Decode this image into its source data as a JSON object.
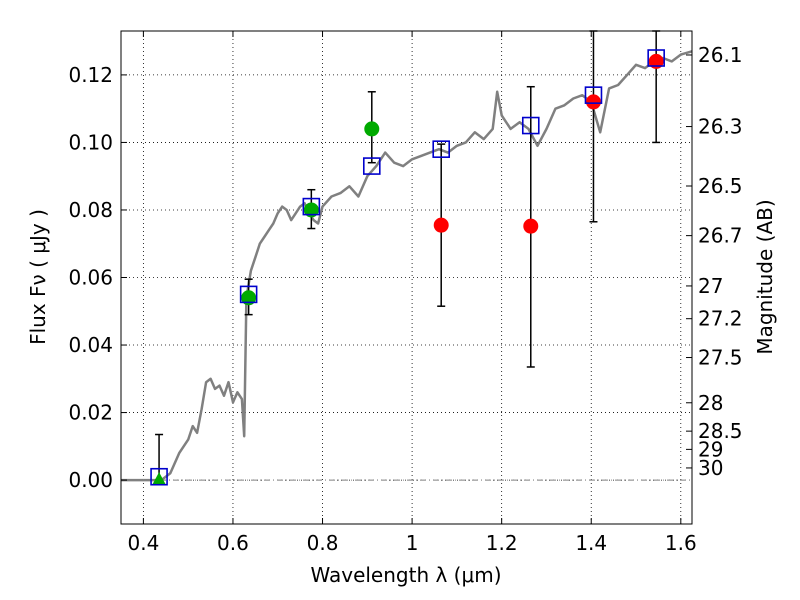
{
  "chart_data": {
    "type": "scatter",
    "xlabel": "Wavelength  λ (μm)",
    "ylabel": "Flux  Fν  ( μJy )",
    "ylabel_right": "Magnitude (AB)",
    "xlim": [
      0.35,
      1.625
    ],
    "ylim": [
      -0.013,
      0.133
    ],
    "grid": true,
    "x_ticks": [
      0.4,
      0.6,
      0.8,
      1.0,
      1.2,
      1.4,
      1.6
    ],
    "x_tick_labels": [
      "0.4",
      "0.6",
      "0.8",
      "1",
      "1.2",
      "1.4",
      "1.6"
    ],
    "y_ticks": [
      0.0,
      0.02,
      0.04,
      0.06,
      0.08,
      0.1,
      0.12
    ],
    "y_tick_labels": [
      "0.00",
      "0.02",
      "0.04",
      "0.06",
      "0.08",
      "0.10",
      "0.12"
    ],
    "right_ticks": [
      {
        "flux": 0.1259,
        "label": "26.1"
      },
      {
        "flux": 0.1047,
        "label": "26.3"
      },
      {
        "flux": 0.0871,
        "label": "26.5"
      },
      {
        "flux": 0.0724,
        "label": "26.7"
      },
      {
        "flux": 0.0575,
        "label": "27"
      },
      {
        "flux": 0.0478,
        "label": "27.2"
      },
      {
        "flux": 0.0363,
        "label": "27.5"
      },
      {
        "flux": 0.0229,
        "label": "28"
      },
      {
        "flux": 0.0145,
        "label": "28.5"
      },
      {
        "flux": 0.0091,
        "label": "29"
      },
      {
        "flux": 0.0036,
        "label": "30"
      }
    ],
    "model_sed": {
      "color": "#808080",
      "points": [
        [
          0.35,
          0.0
        ],
        [
          0.44,
          0.0
        ],
        [
          0.46,
          0.002
        ],
        [
          0.48,
          0.008
        ],
        [
          0.5,
          0.012
        ],
        [
          0.51,
          0.016
        ],
        [
          0.52,
          0.014
        ],
        [
          0.53,
          0.021
        ],
        [
          0.54,
          0.029
        ],
        [
          0.55,
          0.03
        ],
        [
          0.56,
          0.027
        ],
        [
          0.57,
          0.028
        ],
        [
          0.58,
          0.025
        ],
        [
          0.59,
          0.029
        ],
        [
          0.6,
          0.023
        ],
        [
          0.61,
          0.026
        ],
        [
          0.62,
          0.024
        ],
        [
          0.625,
          0.013
        ],
        [
          0.63,
          0.054
        ],
        [
          0.64,
          0.062
        ],
        [
          0.65,
          0.066
        ],
        [
          0.66,
          0.07
        ],
        [
          0.67,
          0.072
        ],
        [
          0.68,
          0.074
        ],
        [
          0.69,
          0.076
        ],
        [
          0.7,
          0.079
        ],
        [
          0.71,
          0.081
        ],
        [
          0.72,
          0.08
        ],
        [
          0.73,
          0.077
        ],
        [
          0.74,
          0.079
        ],
        [
          0.75,
          0.081
        ],
        [
          0.76,
          0.082
        ],
        [
          0.77,
          0.079
        ],
        [
          0.78,
          0.077
        ],
        [
          0.79,
          0.076
        ],
        [
          0.8,
          0.081
        ],
        [
          0.82,
          0.084
        ],
        [
          0.84,
          0.085
        ],
        [
          0.86,
          0.087
        ],
        [
          0.88,
          0.084
        ],
        [
          0.9,
          0.09
        ],
        [
          0.92,
          0.093
        ],
        [
          0.94,
          0.097
        ],
        [
          0.96,
          0.094
        ],
        [
          0.98,
          0.093
        ],
        [
          1.0,
          0.095
        ],
        [
          1.02,
          0.096
        ],
        [
          1.04,
          0.097
        ],
        [
          1.06,
          0.098
        ],
        [
          1.08,
          0.097
        ],
        [
          1.1,
          0.099
        ],
        [
          1.12,
          0.1
        ],
        [
          1.14,
          0.103
        ],
        [
          1.16,
          0.101
        ],
        [
          1.18,
          0.104
        ],
        [
          1.19,
          0.115
        ],
        [
          1.2,
          0.108
        ],
        [
          1.22,
          0.104
        ],
        [
          1.24,
          0.106
        ],
        [
          1.26,
          0.104
        ],
        [
          1.28,
          0.099
        ],
        [
          1.3,
          0.104
        ],
        [
          1.32,
          0.11
        ],
        [
          1.34,
          0.111
        ],
        [
          1.36,
          0.113
        ],
        [
          1.38,
          0.114
        ],
        [
          1.4,
          0.112
        ],
        [
          1.42,
          0.103
        ],
        [
          1.44,
          0.116
        ],
        [
          1.46,
          0.117
        ],
        [
          1.48,
          0.12
        ],
        [
          1.5,
          0.123
        ],
        [
          1.52,
          0.122
        ],
        [
          1.54,
          0.124
        ],
        [
          1.56,
          0.125
        ],
        [
          1.58,
          0.124
        ],
        [
          1.6,
          0.126
        ],
        [
          1.625,
          0.127
        ]
      ]
    },
    "series": [
      {
        "marker": "square",
        "color": "#0000cc",
        "points": [
          {
            "x": 0.435,
            "y": 0.001
          },
          {
            "x": 0.635,
            "y": 0.055
          },
          {
            "x": 0.775,
            "y": 0.081
          },
          {
            "x": 0.91,
            "y": 0.093
          },
          {
            "x": 1.065,
            "y": 0.098
          },
          {
            "x": 1.265,
            "y": 0.105
          },
          {
            "x": 1.405,
            "y": 0.114
          },
          {
            "x": 1.545,
            "y": 0.125
          }
        ]
      },
      {
        "marker": "circle",
        "color": "#00aa00",
        "points": [
          {
            "x": 0.635,
            "y": 0.054,
            "err": [
              0.049,
              0.0595
            ]
          },
          {
            "x": 0.775,
            "y": 0.08,
            "err": [
              0.0745,
              0.086
            ]
          },
          {
            "x": 0.91,
            "y": 0.104,
            "err": [
              0.094,
              0.115
            ]
          }
        ]
      },
      {
        "marker": "triangle",
        "color": "#00aa00",
        "points": [
          {
            "x": 0.435,
            "y": 0.0,
            "err": [
              0.0,
              0.0135
            ]
          }
        ]
      },
      {
        "marker": "circle",
        "color": "#ff0000",
        "points": [
          {
            "x": 1.065,
            "y": 0.0755,
            "err": [
              0.0515,
              0.0995
            ]
          },
          {
            "x": 1.265,
            "y": 0.0752,
            "err": [
              0.0335,
              0.1165
            ]
          },
          {
            "x": 1.405,
            "y": 0.112,
            "err": [
              0.0765,
              0.133
            ]
          },
          {
            "x": 1.545,
            "y": 0.124,
            "err": [
              0.1,
              0.133
            ]
          }
        ]
      }
    ],
    "zero_line": {
      "y": 0.0,
      "style": "dash-dot",
      "color": "#808080"
    }
  }
}
